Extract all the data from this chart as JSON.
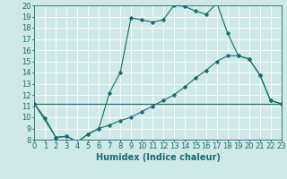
{
  "xlabel": "Humidex (Indice chaleur)",
  "xlim": [
    0,
    23
  ],
  "ylim": [
    8,
    20
  ],
  "xticks": [
    0,
    1,
    2,
    3,
    4,
    5,
    6,
    7,
    8,
    9,
    10,
    11,
    12,
    13,
    14,
    15,
    16,
    17,
    18,
    19,
    20,
    21,
    22,
    23
  ],
  "yticks": [
    8,
    9,
    10,
    11,
    12,
    13,
    14,
    15,
    16,
    17,
    18,
    19,
    20
  ],
  "background_color": "#cfe8e8",
  "grid_color": "#ffffff",
  "line_color": "#1a6b6b",
  "line1_x": [
    0,
    1,
    2,
    3,
    4,
    5,
    6,
    7,
    8,
    9,
    10,
    11,
    12,
    13,
    14,
    15,
    16,
    17,
    18,
    19,
    20,
    21,
    22,
    23
  ],
  "line1_y": [
    11.2,
    9.9,
    8.2,
    8.3,
    7.8,
    8.5,
    9.0,
    12.2,
    14.0,
    18.9,
    18.7,
    18.5,
    18.7,
    20.0,
    19.9,
    19.5,
    19.2,
    20.2,
    17.5,
    15.5,
    15.2,
    13.8,
    11.5,
    11.2
  ],
  "line2_x": [
    0,
    2,
    3,
    4,
    5,
    6,
    7,
    8,
    9,
    10,
    11,
    12,
    13,
    14,
    15,
    16,
    17,
    18,
    19,
    20,
    21,
    22,
    23
  ],
  "line2_y": [
    11.2,
    8.2,
    8.3,
    7.8,
    8.5,
    9.0,
    9.3,
    9.7,
    10.0,
    10.5,
    11.0,
    11.5,
    12.0,
    12.7,
    13.5,
    14.2,
    15.0,
    15.5,
    15.5,
    15.2,
    13.8,
    11.5,
    11.2
  ],
  "line3_x": [
    0,
    23
  ],
  "line3_y": [
    11.2,
    11.2
  ],
  "font_size": 7,
  "tick_font_size": 6
}
